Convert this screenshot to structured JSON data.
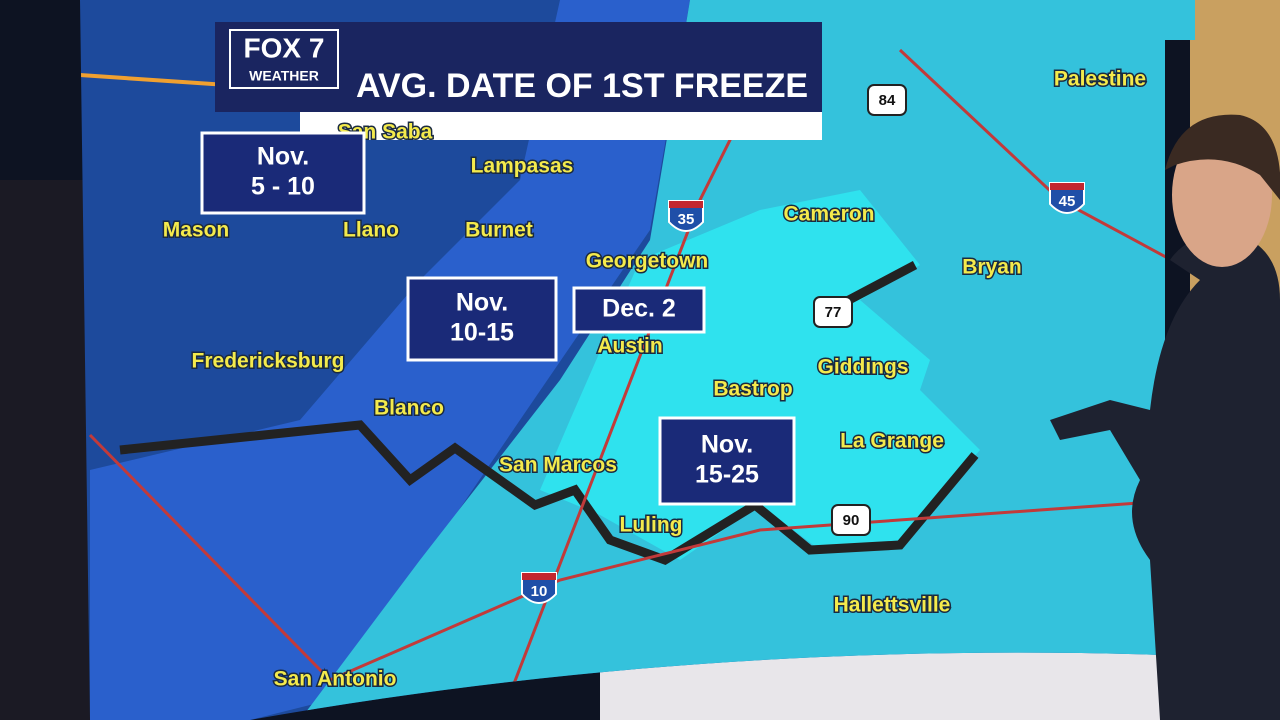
{
  "header": {
    "logo": "FOX 7",
    "logo_sub": "WEATHER",
    "title": "AVG. DATE OF 1ST FREEZE"
  },
  "zones": [
    {
      "lines": [
        "Nov.",
        "5 - 10"
      ]
    },
    {
      "lines": [
        "Nov.",
        "10-15"
      ]
    },
    {
      "lines": [
        "Dec. 2"
      ]
    },
    {
      "lines": [
        "Nov.",
        "15-25"
      ]
    }
  ],
  "cities": [
    "San Saba",
    "Lampasas",
    "Mason",
    "Llano",
    "Burnet",
    "Georgetown",
    "Cameron",
    "Palestine",
    "Bryan",
    "Fredericksburg",
    "Austin",
    "Giddings",
    "Bastrop",
    "Blanco",
    "La Grange",
    "San Marcos",
    "Luling",
    "Hallettsville",
    "San Antonio"
  ],
  "highways": [
    "84",
    "35",
    "45",
    "77",
    "90",
    "10"
  ]
}
